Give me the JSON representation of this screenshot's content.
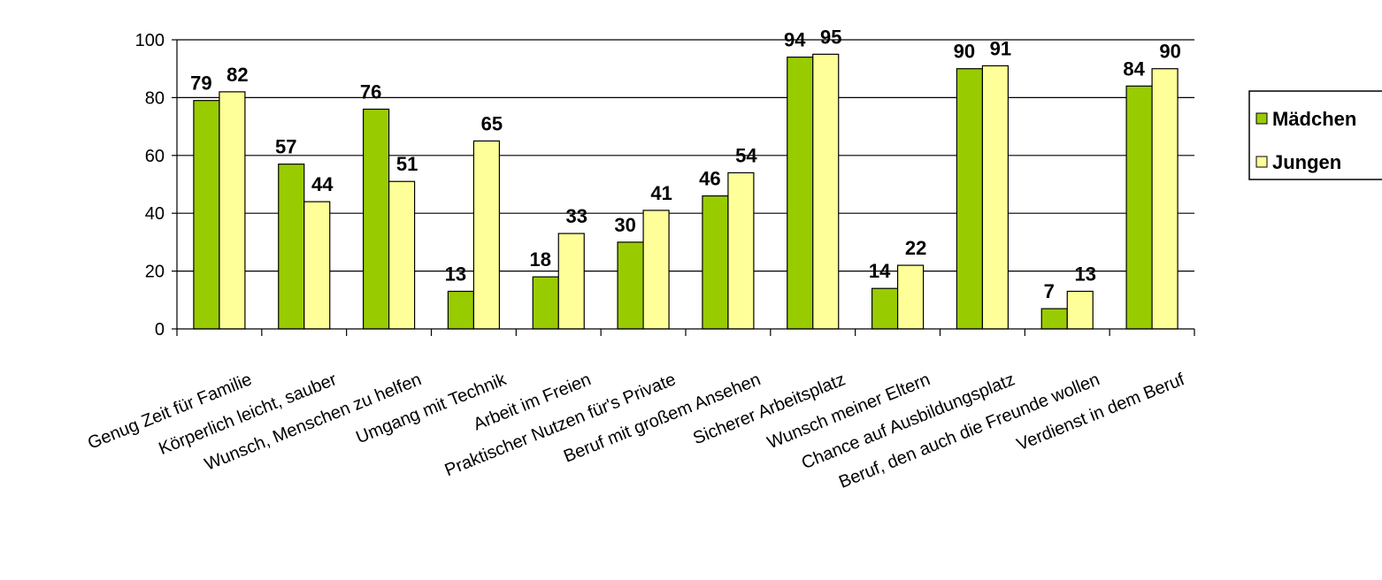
{
  "chart_data": {
    "type": "bar",
    "categories": [
      "Genug Zeit für Familie",
      "Körperlich leicht, sauber",
      "Wunsch, Menschen zu helfen",
      "Umgang mit Technik",
      "Arbeit im Freien",
      "Praktischer Nutzen für's Private",
      "Beruf mit großem Ansehen",
      "Sicherer Arbeitsplatz",
      "Wunsch meiner Eltern",
      "Chance auf Ausbildungsplatz",
      "Beruf, den auch die Freunde wollen",
      "Verdienst in dem Beruf"
    ],
    "series": [
      {
        "name": "Mädchen",
        "values": [
          79,
          57,
          76,
          13,
          18,
          30,
          46,
          94,
          14,
          90,
          7,
          84
        ],
        "color": "#99cc00"
      },
      {
        "name": "Jungen",
        "values": [
          82,
          44,
          51,
          65,
          33,
          41,
          54,
          95,
          22,
          91,
          13,
          90
        ],
        "color": "#ffff99"
      }
    ],
    "ylim": [
      0,
      100
    ],
    "yticks": [
      0,
      20,
      40,
      60,
      80,
      100
    ],
    "grid": true,
    "legend": "right"
  }
}
